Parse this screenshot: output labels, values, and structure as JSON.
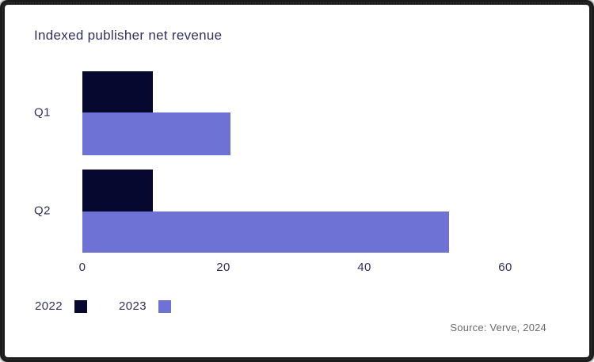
{
  "title": "Indexed publisher net revenue",
  "source": "Source: Verve, 2024",
  "colors": {
    "series_2022": "#060830",
    "series_2023": "#6F72D5",
    "text": "#2F3060",
    "source_text": "#6B6B6B",
    "frame_border": "#1B1B1B",
    "background": "#FFFFFF"
  },
  "chart_data": {
    "type": "bar",
    "orientation": "horizontal",
    "title": "Indexed publisher net revenue",
    "categories": [
      "Q1",
      "Q2"
    ],
    "series": [
      {
        "name": "2022",
        "color": "#060830",
        "values": [
          10,
          10
        ]
      },
      {
        "name": "2023",
        "color": "#6F72D5",
        "values": [
          21,
          52
        ]
      }
    ],
    "xlabel": "",
    "ylabel": "",
    "xlim": [
      0,
      60
    ],
    "xticks": [
      0,
      20,
      40,
      60
    ],
    "grid": false,
    "legend_position": "bottom-left",
    "annotation": "Source: Verve, 2024"
  }
}
